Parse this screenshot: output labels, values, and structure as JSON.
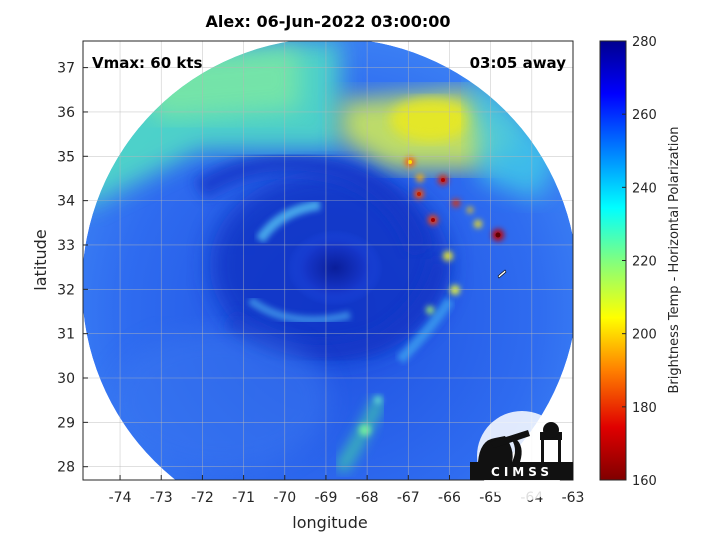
{
  "title": "Alex: 06-Jun-2022 03:00:00",
  "vmax_label": "Vmax: 60 kts",
  "time_away_label": "03:05 away",
  "logo_text": "CIMSS",
  "colorbar": {
    "label": "Brightness Temp - Horizontal Polarization",
    "min": 160,
    "max": 280,
    "ticks": [
      "280",
      "260",
      "240",
      "220",
      "200",
      "180",
      "160"
    ]
  },
  "chart_data": {
    "type": "heatmap",
    "title": "Alex: 06-Jun-2022 03:00:00",
    "xlabel": "longitude",
    "ylabel": "latitude",
    "xlim": [
      -74.9,
      -63
    ],
    "ylim": [
      27.7,
      37.6
    ],
    "grid": true,
    "x_ticks": [
      "-74",
      "-73",
      "-72",
      "-71",
      "-70",
      "-69",
      "-68",
      "-67",
      "-66",
      "-65",
      "-64",
      "-63"
    ],
    "y_ticks": [
      "28",
      "29",
      "30",
      "31",
      "32",
      "33",
      "34",
      "35",
      "36",
      "37"
    ],
    "storm_center": {
      "lon": -68.6,
      "lat": 32.5
    }
  }
}
